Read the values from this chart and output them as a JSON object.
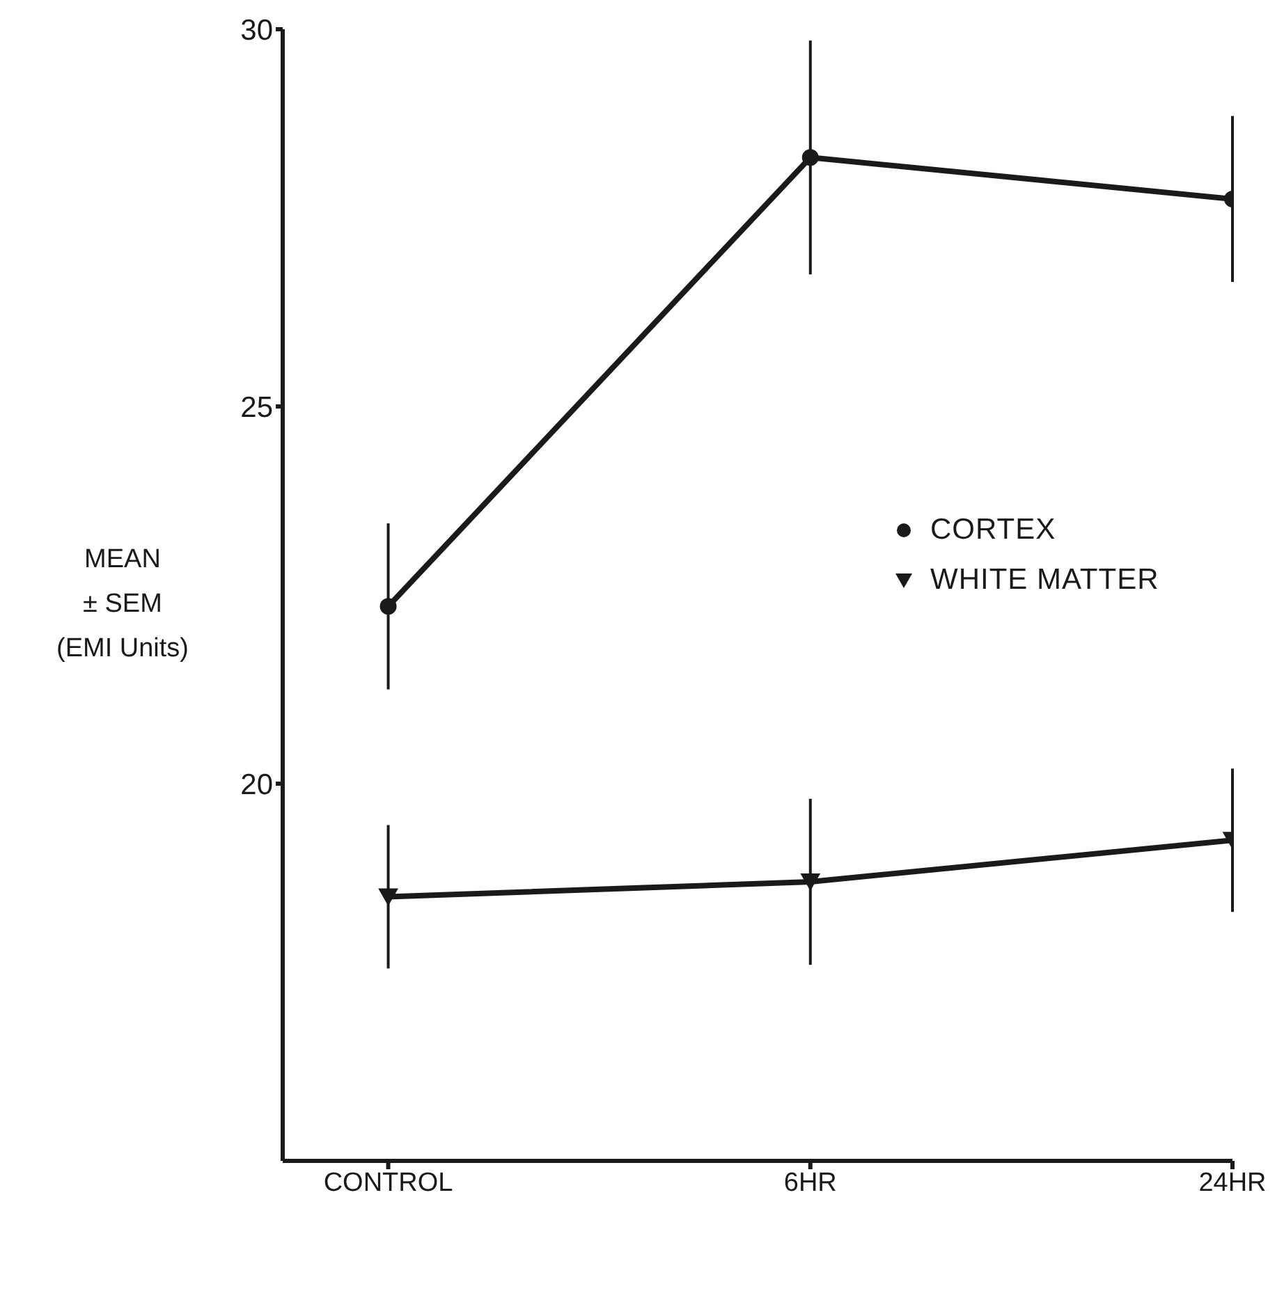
{
  "chart_data": {
    "type": "line",
    "ylabel": "MEAN\n± SEM\n(EMI Units)",
    "categories": [
      "CONTROL",
      "6HR",
      "24HR"
    ],
    "series": [
      {
        "name": "CORTEX",
        "color": "#1a1a1a",
        "marker": "circle",
        "values": [
          22.35,
          28.3,
          27.75
        ],
        "errors": [
          1.1,
          1.55,
          1.1
        ]
      },
      {
        "name": "WHITE MATTER",
        "color": "#1a1a1a",
        "marker": "triangle",
        "values": [
          18.5,
          18.7,
          19.25
        ],
        "errors": [
          0.95,
          1.1,
          0.95
        ]
      }
    ],
    "ylim": [
      15,
      30
    ],
    "yticks": [
      20,
      25,
      30
    ],
    "legend": "right",
    "grid": false,
    "line_style": "solid"
  }
}
